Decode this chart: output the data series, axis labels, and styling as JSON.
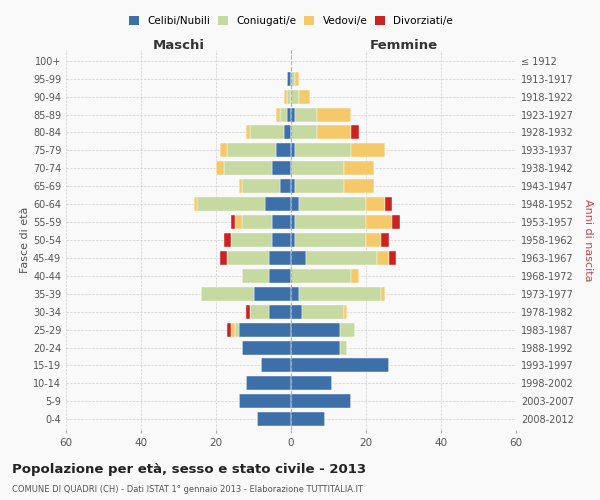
{
  "age_groups": [
    "0-4",
    "5-9",
    "10-14",
    "15-19",
    "20-24",
    "25-29",
    "30-34",
    "35-39",
    "40-44",
    "45-49",
    "50-54",
    "55-59",
    "60-64",
    "65-69",
    "70-74",
    "75-79",
    "80-84",
    "85-89",
    "90-94",
    "95-99",
    "100+"
  ],
  "birth_years": [
    "2008-2012",
    "2003-2007",
    "1998-2002",
    "1993-1997",
    "1988-1992",
    "1983-1987",
    "1978-1982",
    "1973-1977",
    "1968-1972",
    "1963-1967",
    "1958-1962",
    "1953-1957",
    "1948-1952",
    "1943-1947",
    "1938-1942",
    "1933-1937",
    "1928-1932",
    "1923-1927",
    "1918-1922",
    "1913-1917",
    "≤ 1912"
  ],
  "colors": {
    "celibe": "#3d6fa8",
    "coniugato": "#c5d9a0",
    "vedovo": "#f5c96a",
    "divorziato": "#cc2222"
  },
  "maschi": {
    "celibe": [
      9,
      14,
      12,
      8,
      13,
      14,
      6,
      10,
      6,
      6,
      5,
      5,
      7,
      3,
      5,
      4,
      2,
      1,
      0,
      1,
      0
    ],
    "coniugato": [
      0,
      0,
      0,
      0,
      0,
      1,
      5,
      14,
      7,
      11,
      11,
      8,
      18,
      10,
      13,
      13,
      9,
      2,
      1,
      0,
      0
    ],
    "vedovo": [
      0,
      0,
      0,
      0,
      0,
      1,
      0,
      0,
      0,
      0,
      0,
      2,
      1,
      1,
      2,
      2,
      1,
      1,
      1,
      0,
      0
    ],
    "divorziato": [
      0,
      0,
      0,
      0,
      0,
      1,
      1,
      0,
      0,
      2,
      2,
      1,
      0,
      0,
      0,
      0,
      0,
      0,
      0,
      0,
      0
    ]
  },
  "femmine": {
    "nubile": [
      9,
      16,
      11,
      26,
      13,
      13,
      3,
      2,
      0,
      4,
      1,
      1,
      2,
      1,
      0,
      1,
      0,
      1,
      0,
      0,
      0
    ],
    "coniugata": [
      0,
      0,
      0,
      0,
      2,
      4,
      11,
      22,
      16,
      19,
      19,
      19,
      18,
      13,
      14,
      15,
      7,
      6,
      2,
      1,
      0
    ],
    "vedova": [
      0,
      0,
      0,
      0,
      0,
      0,
      1,
      1,
      2,
      3,
      4,
      7,
      5,
      8,
      8,
      9,
      9,
      9,
      3,
      1,
      0
    ],
    "divorziata": [
      0,
      0,
      0,
      0,
      0,
      0,
      0,
      0,
      0,
      2,
      2,
      2,
      2,
      0,
      0,
      0,
      2,
      0,
      0,
      0,
      0
    ]
  },
  "title": "Popolazione per età, sesso e stato civile - 2013",
  "subtitle": "COMUNE DI QUADRI (CH) - Dati ISTAT 1° gennaio 2013 - Elaborazione TUTTITALIA.IT",
  "xlabel_left": "Maschi",
  "xlabel_right": "Femmine",
  "ylabel_left": "Fasce di età",
  "ylabel_right": "Anni di nascita",
  "legend_labels": [
    "Celibi/Nubili",
    "Coniugati/e",
    "Vedovi/e",
    "Divorziati/e"
  ],
  "xlim": 60,
  "background": "#f9f9f9",
  "grid_color": "#cccccc"
}
